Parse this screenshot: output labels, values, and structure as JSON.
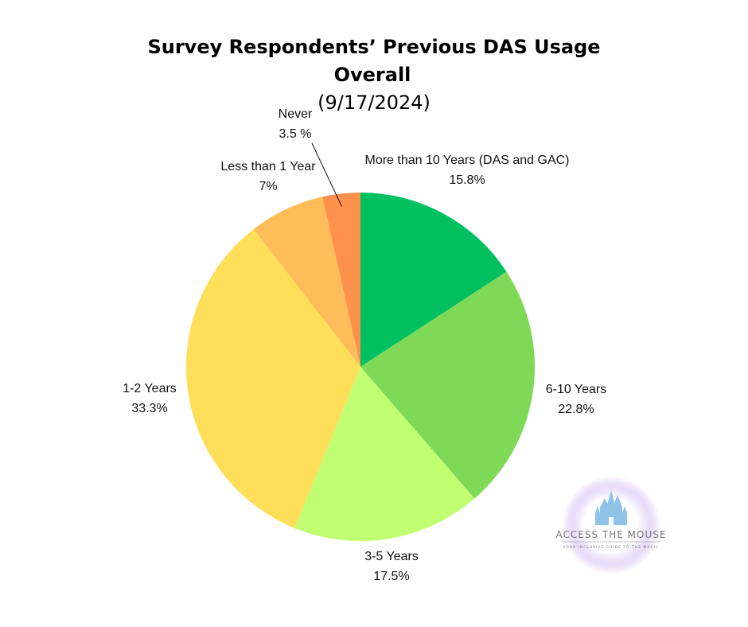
{
  "chart_data": {
    "type": "pie",
    "title": "Survey Respondents’ Previous DAS Usage",
    "subtitle_line1": "Overall",
    "subtitle_line2": "(9/17/2024)",
    "slices": [
      {
        "label": "More than 10 Years (DAS and GAC)",
        "value": 15.8,
        "value_label": "15.8%",
        "color": "#00C060"
      },
      {
        "label": "6-10 Years",
        "value": 22.8,
        "value_label": "22.8%",
        "color": "#7ED957"
      },
      {
        "label": "3-5 Years",
        "value": 17.5,
        "value_label": "17.5%",
        "color": "#C1FF72"
      },
      {
        "label": "1-2 Years",
        "value": 33.3,
        "value_label": "33.3%",
        "color": "#FFDE59"
      },
      {
        "label": "Less than 1 Year",
        "value": 7,
        "value_label": "7%",
        "color": "#FFBD59"
      },
      {
        "label": "Never",
        "value": 3.5,
        "value_label": "3.5 %",
        "color": "#FF914D"
      }
    ]
  },
  "logo": {
    "name": "ACCESS THE MOUSE",
    "tagline": "YOUR INCLUSIVE GUIDE TO THE MAGIC",
    "glow_color": "#C9A9F0",
    "castle_color": "#8FC3E8",
    "icon": "castle-icon"
  }
}
